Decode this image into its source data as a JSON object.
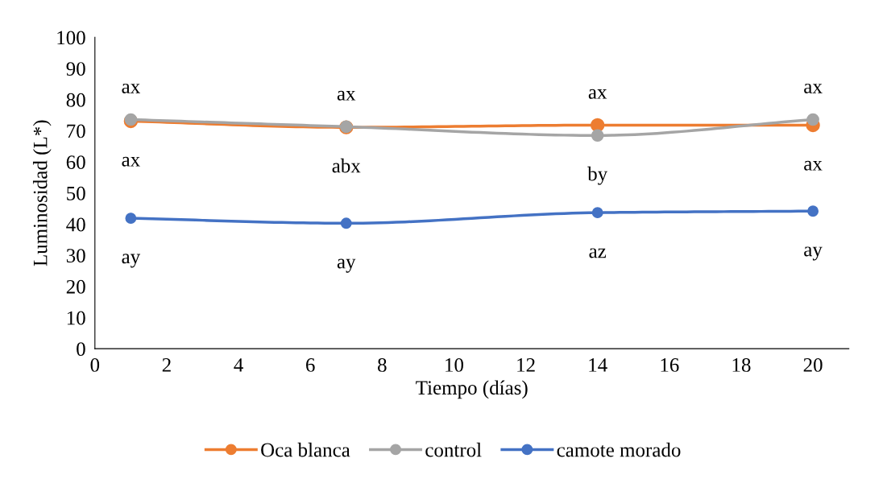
{
  "chart_data": {
    "type": "line",
    "xlabel": "Tiempo (días)",
    "ylabel": "Luminosidad (L*)",
    "x": [
      1,
      7,
      14,
      20
    ],
    "series": [
      {
        "name": "Oca blanca",
        "color": "#ed7d31",
        "values": [
          73.1,
          71.1,
          71.8,
          71.8
        ]
      },
      {
        "name": "control",
        "color": "#a5a5a5",
        "values": [
          73.6,
          71.3,
          68.5,
          73.6
        ]
      },
      {
        "name": "camote morado",
        "color": "#4472c4",
        "values": [
          41.9,
          40.3,
          43.7,
          44.2
        ]
      }
    ],
    "xlim": [
      0,
      21
    ],
    "xticks": [
      0,
      2,
      4,
      6,
      8,
      10,
      12,
      14,
      16,
      18,
      20
    ],
    "ylim": [
      0,
      100
    ],
    "yticks": [
      0,
      10,
      20,
      30,
      40,
      50,
      60,
      70,
      80,
      90,
      100
    ],
    "marker": "circle",
    "line_style": "solid",
    "grid": false,
    "legend": "bottom",
    "annotations": [
      {
        "text": "ax",
        "x": 1,
        "y": 73.6
      },
      {
        "text": "ax",
        "x": 7,
        "y": 71.3
      },
      {
        "text": "ax",
        "x": 14,
        "y": 71.8
      },
      {
        "text": "ax",
        "x": 20,
        "y": 73.6
      },
      {
        "text": "ax",
        "x": 1,
        "y": 73.1
      },
      {
        "text": "abx",
        "x": 7,
        "y": 71.1
      },
      {
        "text": "by",
        "x": 14,
        "y": 68.5
      },
      {
        "text": "ax",
        "x": 20,
        "y": 71.8
      },
      {
        "text": "ay",
        "x": 1,
        "y": 41.9
      },
      {
        "text": "ay",
        "x": 7,
        "y": 40.3
      },
      {
        "text": "az",
        "x": 14,
        "y": 43.7
      },
      {
        "text": "ay",
        "x": 20,
        "y": 44.2
      }
    ]
  }
}
